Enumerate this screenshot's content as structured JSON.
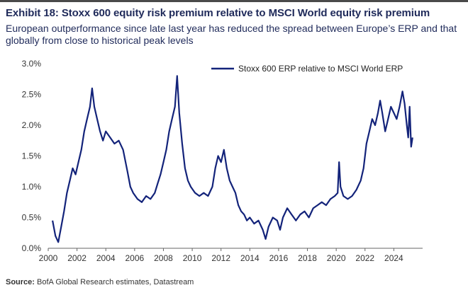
{
  "header": {
    "title": "Exhibit 18: Stoxx 600 equity risk premium relative to MSCI World equity risk premium",
    "subtitle": "European outperformance since late last year has reduced the spread between Europe’s ERP and that globally from close to historical peak levels"
  },
  "footer": {
    "source_label": "Source:",
    "source_text": " BofA Global Research estimates, Datastream"
  },
  "colors": {
    "series": "#13237a",
    "axis": "#666666",
    "title": "#1f2a5a"
  },
  "chart_data": {
    "type": "line",
    "title": "",
    "xlabel": "",
    "ylabel": "",
    "xlim": [
      2000,
      2026
    ],
    "ylim": [
      0,
      3.0
    ],
    "grid": false,
    "legend_position": "top-right",
    "x_ticks": [
      2000,
      2002,
      2004,
      2006,
      2008,
      2010,
      2012,
      2014,
      2016,
      2018,
      2020,
      2022,
      2024
    ],
    "y_ticks": [
      {
        "value": 0.0,
        "label": "0.0%"
      },
      {
        "value": 0.5,
        "label": "0.5%"
      },
      {
        "value": 1.0,
        "label": "1.0%"
      },
      {
        "value": 1.5,
        "label": "1.5%"
      },
      {
        "value": 2.0,
        "label": "2.0%"
      },
      {
        "value": 2.5,
        "label": "2.5%"
      },
      {
        "value": 3.0,
        "label": "3.0%"
      }
    ],
    "series": [
      {
        "name": "Stoxx 600 ERP relative to MSCI World ERP",
        "points": [
          [
            2000.3,
            0.45
          ],
          [
            2000.5,
            0.2
          ],
          [
            2000.7,
            0.1
          ],
          [
            2000.9,
            0.35
          ],
          [
            2001.1,
            0.6
          ],
          [
            2001.3,
            0.9
          ],
          [
            2001.5,
            1.1
          ],
          [
            2001.7,
            1.3
          ],
          [
            2001.9,
            1.2
          ],
          [
            2002.1,
            1.4
          ],
          [
            2002.3,
            1.6
          ],
          [
            2002.5,
            1.9
          ],
          [
            2002.7,
            2.1
          ],
          [
            2002.9,
            2.3
          ],
          [
            2003.05,
            2.6
          ],
          [
            2003.2,
            2.3
          ],
          [
            2003.4,
            2.1
          ],
          [
            2003.6,
            1.9
          ],
          [
            2003.8,
            1.75
          ],
          [
            2004.0,
            1.9
          ],
          [
            2004.3,
            1.8
          ],
          [
            2004.6,
            1.7
          ],
          [
            2004.9,
            1.75
          ],
          [
            2005.2,
            1.6
          ],
          [
            2005.5,
            1.25
          ],
          [
            2005.7,
            1.0
          ],
          [
            2005.9,
            0.9
          ],
          [
            2006.2,
            0.8
          ],
          [
            2006.5,
            0.75
          ],
          [
            2006.8,
            0.85
          ],
          [
            2007.1,
            0.8
          ],
          [
            2007.4,
            0.9
          ],
          [
            2007.6,
            1.05
          ],
          [
            2007.8,
            1.2
          ],
          [
            2008.0,
            1.4
          ],
          [
            2008.2,
            1.6
          ],
          [
            2008.4,
            1.9
          ],
          [
            2008.6,
            2.1
          ],
          [
            2008.8,
            2.3
          ],
          [
            2008.95,
            2.8
          ],
          [
            2009.1,
            2.2
          ],
          [
            2009.3,
            1.7
          ],
          [
            2009.5,
            1.3
          ],
          [
            2009.7,
            1.1
          ],
          [
            2009.9,
            1.0
          ],
          [
            2010.2,
            0.9
          ],
          [
            2010.5,
            0.85
          ],
          [
            2010.8,
            0.9
          ],
          [
            2011.1,
            0.85
          ],
          [
            2011.4,
            1.0
          ],
          [
            2011.6,
            1.3
          ],
          [
            2011.8,
            1.5
          ],
          [
            2012.0,
            1.4
          ],
          [
            2012.2,
            1.6
          ],
          [
            2012.4,
            1.3
          ],
          [
            2012.6,
            1.1
          ],
          [
            2012.8,
            1.0
          ],
          [
            2013.0,
            0.9
          ],
          [
            2013.2,
            0.7
          ],
          [
            2013.4,
            0.6
          ],
          [
            2013.6,
            0.55
          ],
          [
            2013.8,
            0.45
          ],
          [
            2014.0,
            0.5
          ],
          [
            2014.3,
            0.4
          ],
          [
            2014.6,
            0.45
          ],
          [
            2014.9,
            0.3
          ],
          [
            2015.1,
            0.15
          ],
          [
            2015.3,
            0.35
          ],
          [
            2015.6,
            0.5
          ],
          [
            2015.9,
            0.45
          ],
          [
            2016.1,
            0.3
          ],
          [
            2016.3,
            0.5
          ],
          [
            2016.6,
            0.65
          ],
          [
            2016.9,
            0.55
          ],
          [
            2017.2,
            0.45
          ],
          [
            2017.5,
            0.55
          ],
          [
            2017.8,
            0.6
          ],
          [
            2018.1,
            0.5
          ],
          [
            2018.4,
            0.65
          ],
          [
            2018.7,
            0.7
          ],
          [
            2019.0,
            0.75
          ],
          [
            2019.3,
            0.7
          ],
          [
            2019.6,
            0.8
          ],
          [
            2019.9,
            0.85
          ],
          [
            2020.1,
            0.9
          ],
          [
            2020.2,
            1.4
          ],
          [
            2020.3,
            1.0
          ],
          [
            2020.5,
            0.85
          ],
          [
            2020.8,
            0.8
          ],
          [
            2021.1,
            0.85
          ],
          [
            2021.4,
            0.95
          ],
          [
            2021.7,
            1.1
          ],
          [
            2021.9,
            1.3
          ],
          [
            2022.1,
            1.7
          ],
          [
            2022.3,
            1.9
          ],
          [
            2022.5,
            2.1
          ],
          [
            2022.7,
            2.0
          ],
          [
            2022.9,
            2.2
          ],
          [
            2023.05,
            2.4
          ],
          [
            2023.2,
            2.2
          ],
          [
            2023.4,
            1.9
          ],
          [
            2023.6,
            2.1
          ],
          [
            2023.8,
            2.3
          ],
          [
            2024.0,
            2.2
          ],
          [
            2024.2,
            2.1
          ],
          [
            2024.4,
            2.3
          ],
          [
            2024.6,
            2.55
          ],
          [
            2024.75,
            2.35
          ],
          [
            2024.9,
            2.0
          ],
          [
            2025.0,
            1.8
          ],
          [
            2025.1,
            2.3
          ],
          [
            2025.2,
            1.65
          ],
          [
            2025.3,
            1.8
          ]
        ]
      }
    ]
  }
}
